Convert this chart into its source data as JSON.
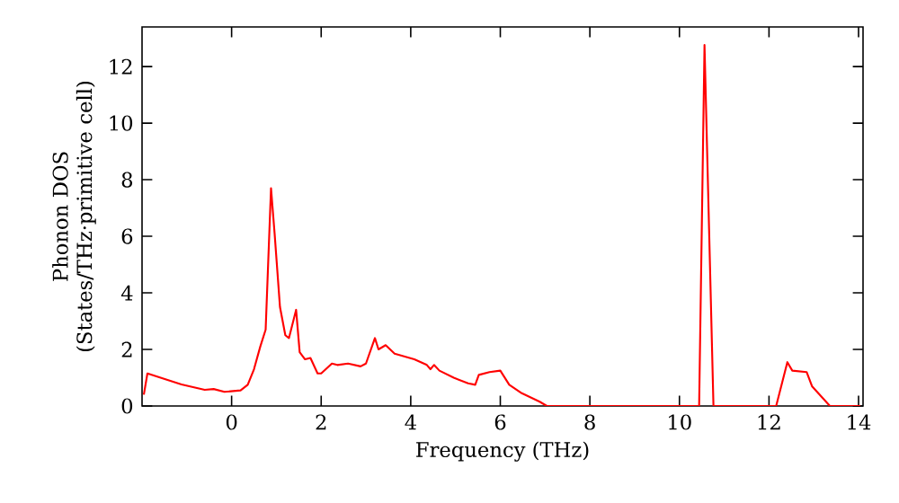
{
  "chart_data": {
    "type": "line",
    "xlabel": "Frequency (THz)",
    "ylabel": "Phonon DOS (States/THz·primitive cell)",
    "xlim": [
      -2,
      14.1
    ],
    "ylim": [
      0,
      13.4
    ],
    "xticks": [
      0,
      2,
      4,
      6,
      8,
      10,
      12,
      14
    ],
    "yticks": [
      0,
      2,
      4,
      6,
      8,
      10,
      12
    ],
    "marker": "none",
    "line_style": "solid",
    "series": [
      {
        "color": "#ff0000",
        "x": [
          -1.96,
          -1.88,
          -1.12,
          -0.6,
          -0.4,
          -0.16,
          0.2,
          0.36,
          0.5,
          0.64,
          0.76,
          0.88,
          0.96,
          1.08,
          1.2,
          1.28,
          1.44,
          1.52,
          1.64,
          1.76,
          1.92,
          2.0,
          2.24,
          2.36,
          2.6,
          2.88,
          3.0,
          3.2,
          3.28,
          3.44,
          3.64,
          4.08,
          4.36,
          4.44,
          4.52,
          4.64,
          4.96,
          5.28,
          5.44,
          5.52,
          5.76,
          6.0,
          6.2,
          6.48,
          6.88,
          7.04,
          10.44,
          10.56,
          10.76,
          12.16,
          12.41,
          12.52,
          12.84,
          12.96,
          13.36,
          14.04
        ],
        "values": [
          0.4,
          1.15,
          0.76,
          0.57,
          0.6,
          0.5,
          0.55,
          0.75,
          1.3,
          2.1,
          2.7,
          7.7,
          6.1,
          3.5,
          2.5,
          2.4,
          3.4,
          1.9,
          1.65,
          1.7,
          1.15,
          1.15,
          1.5,
          1.45,
          1.5,
          1.4,
          1.5,
          2.4,
          2.0,
          2.15,
          1.85,
          1.65,
          1.45,
          1.3,
          1.45,
          1.25,
          1.0,
          0.8,
          0.75,
          1.1,
          1.2,
          1.25,
          0.75,
          0.45,
          0.15,
          0,
          0,
          12.76,
          0,
          0,
          1.55,
          1.25,
          1.2,
          0.7,
          0,
          0
        ]
      }
    ]
  }
}
